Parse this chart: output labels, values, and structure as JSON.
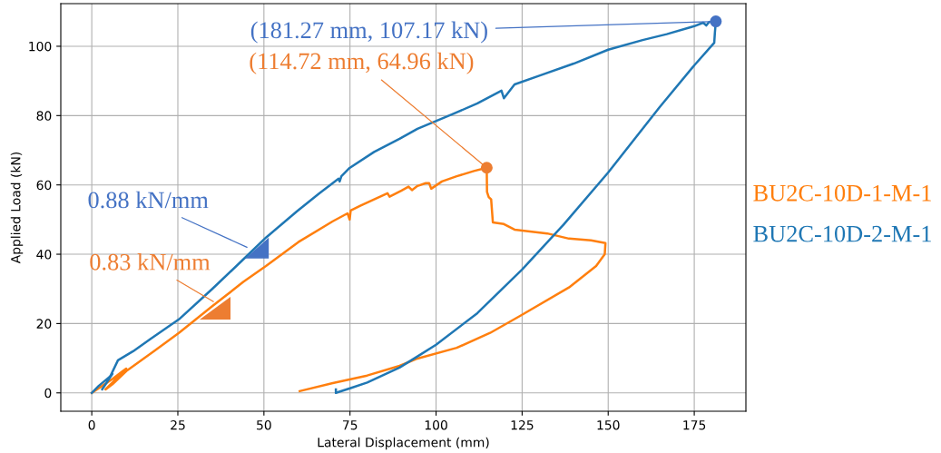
{
  "chart_data": {
    "type": "line",
    "xlabel": "Lateral Displacement (mm)",
    "ylabel": "Applied Load (kN)",
    "xlim": [
      -9,
      190
    ],
    "ylim": [
      -5.3,
      112.3
    ],
    "xticks": [
      0,
      25,
      50,
      75,
      100,
      125,
      150,
      175
    ],
    "yticks": [
      0,
      20,
      40,
      60,
      80,
      100
    ],
    "grid": true,
    "legend": "right",
    "line_style": "solid",
    "series": [
      {
        "name": "BU2C-10D-1-M-1",
        "color": "#ff7f0e",
        "x": [
          0,
          3,
          6,
          9,
          10,
          8,
          6,
          4,
          6,
          10.3,
          18,
          25.3,
          35,
          44,
          50.6,
          60,
          70,
          74.3,
          74.9,
          75.2,
          78,
          85.9,
          86.5,
          90,
          92,
          93,
          94.6,
          97,
          98,
          98.6,
          101.7,
          106,
          111,
          114.72,
          114.8,
          115.3,
          116,
          116.5,
          119.7,
          122.8,
          132.3,
          138.6,
          145,
          149.2,
          149,
          146.5,
          138.6,
          124.4,
          115.7,
          106,
          94.6,
          89.4,
          80,
          70,
          60.4
        ],
        "values": [
          0,
          2,
          4,
          6.3,
          7,
          5,
          3,
          1,
          2.5,
          6.5,
          12,
          17.3,
          25,
          32,
          36.6,
          43.5,
          49.5,
          51.8,
          50,
          52.6,
          54,
          57.6,
          56.6,
          58.4,
          59.5,
          58.5,
          59.7,
          60.5,
          60.5,
          58.9,
          61,
          62.5,
          64,
          64.96,
          58,
          56.5,
          55.8,
          49.2,
          48.7,
          47.1,
          46,
          44.5,
          44,
          43.2,
          40,
          36.6,
          30.4,
          22.2,
          17.3,
          13,
          9.9,
          7.8,
          5,
          2.8,
          0.5
        ]
      },
      {
        "name": "BU2C-10D-2-M-1",
        "color": "#1f77b4",
        "x": [
          0,
          2,
          5,
          6,
          3,
          5,
          7.6,
          12,
          17,
          25.3,
          35,
          44,
          50.6,
          59.6,
          66,
          71.7,
          72,
          72.5,
          74.9,
          82,
          89.4,
          94.6,
          105,
          112,
          119,
          119.7,
          122.8,
          130,
          140,
          150,
          160,
          167,
          175,
          177.6,
          178.5,
          179.3,
          180.8,
          181.27,
          181,
          180.8,
          175,
          165,
          150,
          137,
          125,
          112,
          100,
          94.6,
          89.4,
          80,
          75,
          70.9,
          70.9
        ],
        "values": [
          0,
          2,
          4.5,
          5.5,
          1,
          4,
          9.4,
          12,
          15.5,
          21.2,
          30,
          38.5,
          44.8,
          52.4,
          57.5,
          61.8,
          61,
          62.5,
          64.9,
          69.5,
          73.3,
          76.2,
          80.5,
          83.5,
          87.2,
          85,
          89,
          91.5,
          95,
          99,
          101.8,
          103.5,
          105.8,
          106.8,
          106,
          107,
          107.1,
          107.17,
          104,
          101,
          94.5,
          82.5,
          63.6,
          48.5,
          35.6,
          23,
          13.9,
          10.5,
          7.3,
          3,
          1.3,
          0,
          1
        ]
      },
      {
        "type": "scatter",
        "color": "#ed7d31",
        "marker": "circle",
        "x": [
          114.72
        ],
        "values": [
          64.96
        ]
      },
      {
        "type": "scatter",
        "color": "#4472c4",
        "marker": "circle",
        "x": [
          181.27
        ],
        "values": [
          107.17
        ]
      }
    ],
    "annotations": [
      {
        "text": "(181.27 mm, 107.17 kN)",
        "x": 181.27,
        "y": 107.17
      },
      {
        "text": "(114.72 mm, 64.96 kN)",
        "x": 114.72,
        "y": 64.96
      },
      {
        "text": "0.88 kN/mm",
        "x": 46.4,
        "y": 41.4
      },
      {
        "text": "0.83 kN/mm",
        "x": 36.6,
        "y": 25.6
      }
    ]
  }
}
